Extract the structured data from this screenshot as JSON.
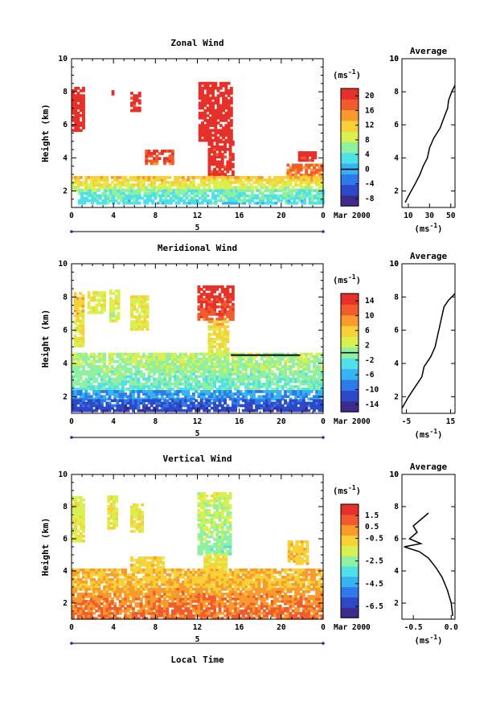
{
  "figure": {
    "xlabel": "Local Time",
    "date_text": "Mar 2000",
    "day_marker": "5",
    "unit_text": "(ms",
    "unit_exp": "-1",
    "unit_close": ")",
    "average_title": "Average",
    "ylabel": "Height (km)",
    "colors": [
      "#3d2b8c",
      "#2d49c8",
      "#2f7ae8",
      "#36b3f0",
      "#4fe0e8",
      "#8ef0a0",
      "#d8f050",
      "#f8d038",
      "#f89a2c",
      "#f25c2c",
      "#e8302a"
    ]
  },
  "chart_data": [
    {
      "type": "heatmap",
      "title": "Zonal Wind",
      "xlabel": "",
      "ylabel": "Height (km)",
      "x_ticks": [
        "0",
        "4",
        "8",
        "12",
        "16",
        "20",
        "0"
      ],
      "y_ticks": [
        "2",
        "4",
        "6",
        "8",
        "10"
      ],
      "xlim": [
        0,
        24
      ],
      "ylim": [
        1,
        10
      ],
      "colorbar": {
        "labels": [
          "-8",
          "-4",
          "0",
          "4",
          "8",
          "12",
          "16",
          "20"
        ],
        "range": [
          -10,
          22
        ],
        "zero_line": 0
      },
      "average_profile": {
        "x_ticks": [
          "10",
          "30",
          "50"
        ],
        "xlim": [
          4,
          54
        ],
        "height": [
          1.3,
          1.8,
          2.5,
          3.0,
          3.5,
          4.0,
          4.6,
          5.2,
          5.8,
          6.5,
          7.0,
          7.5,
          8.0,
          8.4
        ],
        "value": [
          7,
          11,
          17,
          21,
          24,
          28,
          30,
          34,
          40,
          44,
          47,
          48,
          51,
          54
        ]
      }
    },
    {
      "type": "heatmap",
      "title": "Meridional Wind",
      "xlabel": "",
      "ylabel": "Height (km)",
      "x_ticks": [
        "0",
        "4",
        "8",
        "12",
        "16",
        "20",
        "0"
      ],
      "y_ticks": [
        "2",
        "4",
        "6",
        "8",
        "10"
      ],
      "xlim": [
        0,
        24
      ],
      "ylim": [
        1,
        10
      ],
      "colorbar": {
        "labels": [
          "-14",
          "-10",
          "-6",
          "-2",
          "2",
          "6",
          "10",
          "14"
        ],
        "range": [
          -16,
          16
        ],
        "zero_line": 0
      },
      "average_profile": {
        "x_ticks": [
          "-5",
          "15"
        ],
        "xlim": [
          -7,
          17
        ],
        "height": [
          1.3,
          2.0,
          2.6,
          3.2,
          3.8,
          4.4,
          5.0,
          5.6,
          6.2,
          6.8,
          7.4,
          7.8,
          8.2
        ],
        "value": [
          -7,
          -4,
          -1,
          2,
          3,
          6,
          8,
          9,
          10,
          11,
          12,
          14,
          17
        ]
      }
    },
    {
      "type": "heatmap",
      "title": "Vertical Wind",
      "xlabel": "Local Time",
      "ylabel": "Height (km)",
      "x_ticks": [
        "0",
        "4",
        "8",
        "12",
        "16",
        "20",
        "0"
      ],
      "y_ticks": [
        "2",
        "4",
        "6",
        "8",
        "10"
      ],
      "xlim": [
        0,
        24
      ],
      "ylim": [
        1,
        10
      ],
      "colorbar": {
        "labels": [
          "-6.5",
          "-4.5",
          "-2.5",
          "-0.5",
          "0.5",
          "1.5"
        ],
        "range": [
          -7.5,
          2.5
        ],
        "zero_line": null
      },
      "average_profile": {
        "x_ticks": [
          "-0.5",
          "0.0"
        ],
        "xlim": [
          -0.65,
          0.05
        ],
        "height": [
          1.2,
          2.0,
          2.8,
          3.6,
          4.2,
          4.8,
          5.2,
          5.5,
          5.7,
          6.0,
          6.4,
          6.8,
          7.2,
          7.6
        ],
        "value": [
          0.02,
          0.0,
          -0.05,
          -0.12,
          -0.2,
          -0.3,
          -0.42,
          -0.62,
          -0.4,
          -0.55,
          -0.45,
          -0.5,
          -0.4,
          -0.3
        ]
      }
    }
  ]
}
